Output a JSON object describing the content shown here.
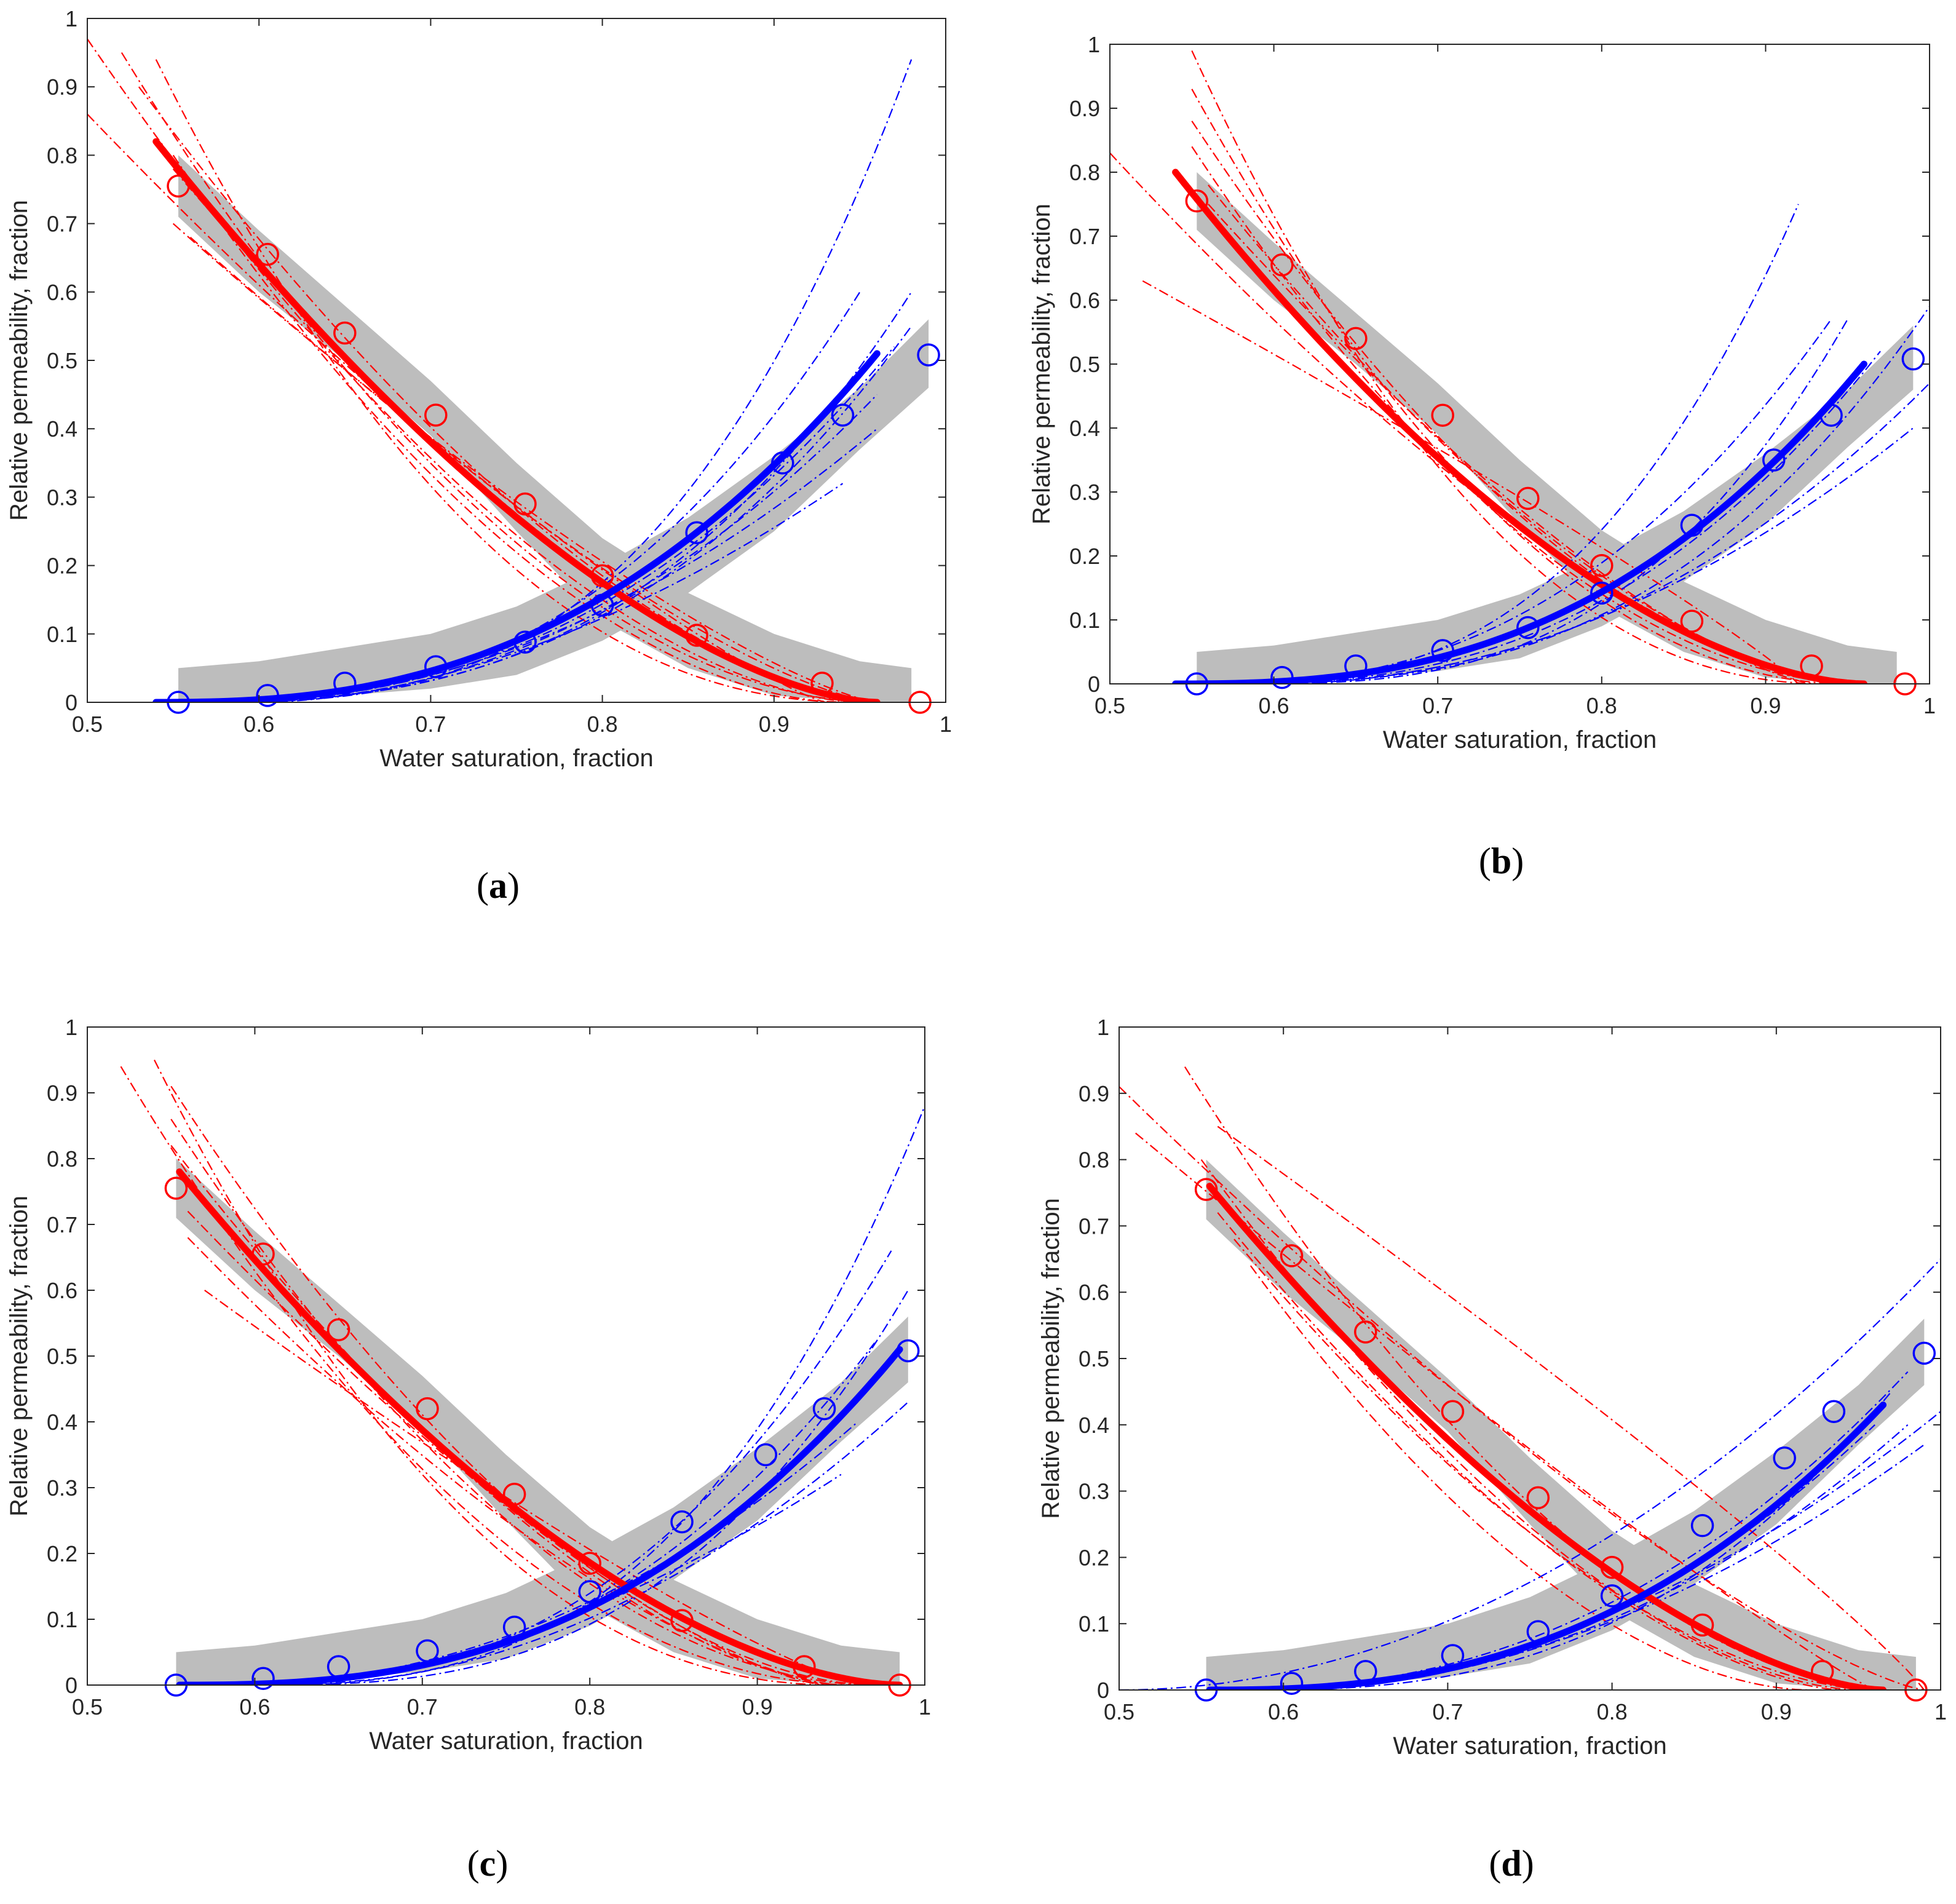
{
  "colors": {
    "krw": "#0000ff",
    "kro": "#ff0000",
    "band": "#bdbdbd",
    "axis": "#262626"
  },
  "figure_title": "",
  "chart_data": [
    {
      "id": "a",
      "panel_label": "a",
      "type": "line",
      "xlabel": "Water saturation, fraction",
      "ylabel": "Relative permeability, fraction",
      "xlim": [
        0.5,
        1
      ],
      "ylim": [
        0,
        1
      ],
      "xticks": [
        0.5,
        0.6,
        0.7,
        0.8,
        0.9,
        1
      ],
      "xtick_labels": [
        "0.5",
        "0.6",
        "0.7",
        "0.8",
        "0.9",
        "1"
      ],
      "yticks": [
        0,
        0.1,
        0.2,
        0.3,
        0.4,
        0.5,
        0.6,
        0.7,
        0.8,
        0.9,
        1
      ],
      "ytick_labels": [
        "0",
        "0.1",
        "0.2",
        "0.3",
        "0.4",
        "0.5",
        "0.6",
        "0.7",
        "0.8",
        "0.9",
        "1"
      ],
      "kro_fit": {
        "x0": 0.54,
        "x1": 0.96,
        "a": 0.82,
        "n": 1.6
      },
      "krw_fit": {
        "x0": 0.54,
        "x1": 0.96,
        "b": 0.51,
        "m": 2.5
      },
      "kro_ensemble": [
        {
          "x0": 0.5,
          "x1": 0.96,
          "a": 0.86,
          "n": 1.4
        },
        {
          "x0": 0.5,
          "x1": 0.95,
          "a": 0.97,
          "n": 1.7
        },
        {
          "x0": 0.52,
          "x1": 0.96,
          "a": 0.95,
          "n": 1.9
        },
        {
          "x0": 0.54,
          "x1": 0.95,
          "a": 0.94,
          "n": 2.2
        },
        {
          "x0": 0.55,
          "x1": 0.94,
          "a": 0.8,
          "n": 1.8
        },
        {
          "x0": 0.55,
          "x1": 0.96,
          "a": 0.7,
          "n": 1.3
        },
        {
          "x0": 0.56,
          "x1": 0.93,
          "a": 0.68,
          "n": 1.2
        },
        {
          "x0": 0.55,
          "x1": 0.95,
          "a": 0.78,
          "n": 1.5
        },
        {
          "x0": 0.53,
          "x1": 0.96,
          "a": 0.9,
          "n": 1.6
        }
      ],
      "krw_ensemble": [
        {
          "x0": 0.56,
          "x1": 0.98,
          "b": 0.94,
          "m": 3.0
        },
        {
          "x0": 0.56,
          "x1": 0.95,
          "b": 0.6,
          "m": 2.6
        },
        {
          "x0": 0.58,
          "x1": 0.96,
          "b": 0.45,
          "m": 2.2
        },
        {
          "x0": 0.55,
          "x1": 0.98,
          "b": 0.6,
          "m": 2.8
        },
        {
          "x0": 0.6,
          "x1": 0.94,
          "b": 0.32,
          "m": 1.8
        },
        {
          "x0": 0.56,
          "x1": 0.97,
          "b": 0.52,
          "m": 2.4
        },
        {
          "x0": 0.58,
          "x1": 0.96,
          "b": 0.4,
          "m": 2.0
        },
        {
          "x0": 0.55,
          "x1": 0.98,
          "b": 0.55,
          "m": 2.7
        }
      ],
      "kro_band": {
        "x": [
          0.553,
          0.6,
          0.65,
          0.7,
          0.75,
          0.8,
          0.85,
          0.9,
          0.95,
          0.98
        ],
        "lower": [
          0.71,
          0.6,
          0.5,
          0.39,
          0.25,
          0.12,
          0.05,
          0.01,
          0.0,
          0.0
        ],
        "upper": [
          0.8,
          0.69,
          0.58,
          0.47,
          0.35,
          0.24,
          0.16,
          0.1,
          0.06,
          0.05
        ]
      },
      "krw_band": {
        "x": [
          0.553,
          0.6,
          0.65,
          0.7,
          0.75,
          0.8,
          0.85,
          0.9,
          0.95,
          0.99
        ],
        "lower": [
          0.0,
          0.0,
          0.01,
          0.02,
          0.04,
          0.09,
          0.16,
          0.25,
          0.37,
          0.46
        ],
        "upper": [
          0.05,
          0.06,
          0.08,
          0.1,
          0.14,
          0.2,
          0.27,
          0.36,
          0.46,
          0.56
        ]
      },
      "kro_points": {
        "x": [
          0.553,
          0.605,
          0.65,
          0.703,
          0.755,
          0.8,
          0.855,
          0.928,
          0.985
        ],
        "y": [
          0.755,
          0.655,
          0.54,
          0.42,
          0.29,
          0.185,
          0.098,
          0.028,
          0.0
        ]
      },
      "krw_points": {
        "x": [
          0.553,
          0.605,
          0.65,
          0.703,
          0.755,
          0.8,
          0.855,
          0.905,
          0.94,
          0.99
        ],
        "y": [
          0.0,
          0.01,
          0.028,
          0.052,
          0.088,
          0.142,
          0.248,
          0.35,
          0.42,
          0.508
        ]
      }
    },
    {
      "id": "b",
      "panel_label": "b",
      "type": "line",
      "xlabel": "Water saturation, fraction",
      "ylabel": "Relative permeability, fraction",
      "xlim": [
        0.5,
        1
      ],
      "ylim": [
        0,
        1
      ],
      "xticks": [
        0.5,
        0.6,
        0.7,
        0.8,
        0.9,
        1
      ],
      "xtick_labels": [
        "0.5",
        "0.6",
        "0.7",
        "0.8",
        "0.9",
        "1"
      ],
      "yticks": [
        0,
        0.1,
        0.2,
        0.3,
        0.4,
        0.5,
        0.6,
        0.7,
        0.8,
        0.9,
        1
      ],
      "ytick_labels": [
        "0",
        "0.1",
        "0.2",
        "0.3",
        "0.4",
        "0.5",
        "0.6",
        "0.7",
        "0.8",
        "0.9",
        "1"
      ],
      "kro_fit": {
        "x0": 0.54,
        "x1": 0.96,
        "a": 0.8,
        "n": 1.7
      },
      "krw_fit": {
        "x0": 0.54,
        "x1": 0.96,
        "b": 0.5,
        "m": 2.6
      },
      "kro_ensemble": [
        {
          "x0": 0.5,
          "x1": 0.95,
          "a": 0.83,
          "n": 1.5
        },
        {
          "x0": 0.52,
          "x1": 0.92,
          "a": 0.63,
          "n": 0.9
        },
        {
          "x0": 0.55,
          "x1": 0.94,
          "a": 0.99,
          "n": 2.2
        },
        {
          "x0": 0.55,
          "x1": 0.95,
          "a": 0.93,
          "n": 2.0
        },
        {
          "x0": 0.55,
          "x1": 0.96,
          "a": 0.88,
          "n": 1.8
        },
        {
          "x0": 0.56,
          "x1": 0.95,
          "a": 0.78,
          "n": 1.6
        },
        {
          "x0": 0.56,
          "x1": 0.93,
          "a": 0.75,
          "n": 1.4
        },
        {
          "x0": 0.55,
          "x1": 0.96,
          "a": 0.84,
          "n": 1.9
        }
      ],
      "krw_ensemble": [
        {
          "x0": 0.56,
          "x1": 0.92,
          "b": 0.75,
          "m": 2.8
        },
        {
          "x0": 0.56,
          "x1": 0.94,
          "b": 0.57,
          "m": 2.4
        },
        {
          "x0": 0.58,
          "x1": 0.95,
          "b": 0.57,
          "m": 2.9
        },
        {
          "x0": 0.56,
          "x1": 1.0,
          "b": 0.59,
          "m": 2.8
        },
        {
          "x0": 0.6,
          "x1": 0.99,
          "b": 0.4,
          "m": 2.0
        },
        {
          "x0": 0.58,
          "x1": 1.0,
          "b": 0.47,
          "m": 2.3
        },
        {
          "x0": 0.57,
          "x1": 0.97,
          "b": 0.52,
          "m": 2.5
        }
      ],
      "kro_band": {
        "x": [
          0.553,
          0.6,
          0.65,
          0.7,
          0.75,
          0.8,
          0.85,
          0.9,
          0.95,
          0.98
        ],
        "lower": [
          0.71,
          0.6,
          0.5,
          0.39,
          0.25,
          0.12,
          0.05,
          0.01,
          0.0,
          0.0
        ],
        "upper": [
          0.8,
          0.69,
          0.58,
          0.47,
          0.35,
          0.24,
          0.16,
          0.1,
          0.06,
          0.05
        ]
      },
      "krw_band": {
        "x": [
          0.553,
          0.6,
          0.65,
          0.7,
          0.75,
          0.8,
          0.85,
          0.9,
          0.95,
          0.99
        ],
        "lower": [
          0.0,
          0.0,
          0.01,
          0.02,
          0.04,
          0.09,
          0.16,
          0.25,
          0.37,
          0.46
        ],
        "upper": [
          0.05,
          0.06,
          0.08,
          0.1,
          0.14,
          0.2,
          0.27,
          0.36,
          0.46,
          0.56
        ]
      },
      "kro_points": {
        "x": [
          0.553,
          0.605,
          0.65,
          0.703,
          0.755,
          0.8,
          0.855,
          0.928,
          0.985
        ],
        "y": [
          0.755,
          0.655,
          0.54,
          0.42,
          0.29,
          0.185,
          0.098,
          0.028,
          0.0
        ]
      },
      "krw_points": {
        "x": [
          0.553,
          0.605,
          0.65,
          0.703,
          0.755,
          0.8,
          0.855,
          0.905,
          0.94,
          0.99
        ],
        "y": [
          0.0,
          0.01,
          0.028,
          0.052,
          0.088,
          0.142,
          0.248,
          0.35,
          0.42,
          0.508
        ]
      }
    },
    {
      "id": "c",
      "panel_label": "c",
      "type": "line",
      "xlabel": "Water saturation, fraction",
      "ylabel": "Relative permeability, fraction",
      "xlim": [
        0.5,
        1
      ],
      "ylim": [
        0,
        1
      ],
      "xticks": [
        0.5,
        0.6,
        0.7,
        0.8,
        0.9,
        1
      ],
      "xtick_labels": [
        "0.5",
        "0.6",
        "0.7",
        "0.8",
        "0.9",
        "1"
      ],
      "yticks": [
        0,
        0.1,
        0.2,
        0.3,
        0.4,
        0.5,
        0.6,
        0.7,
        0.8,
        0.9,
        1
      ],
      "ytick_labels": [
        "0",
        "0.1",
        "0.2",
        "0.3",
        "0.4",
        "0.5",
        "0.6",
        "0.7",
        "0.8",
        "0.9",
        "1"
      ],
      "kro_fit": {
        "x0": 0.555,
        "x1": 0.985,
        "a": 0.78,
        "n": 1.7
      },
      "krw_fit": {
        "x0": 0.555,
        "x1": 0.985,
        "b": 0.51,
        "m": 2.6
      },
      "kro_ensemble": [
        {
          "x0": 0.52,
          "x1": 0.96,
          "a": 0.94,
          "n": 2.0
        },
        {
          "x0": 0.54,
          "x1": 0.95,
          "a": 0.95,
          "n": 2.2
        },
        {
          "x0": 0.55,
          "x1": 0.97,
          "a": 0.91,
          "n": 1.8
        },
        {
          "x0": 0.55,
          "x1": 0.95,
          "a": 0.82,
          "n": 1.6
        },
        {
          "x0": 0.56,
          "x1": 0.94,
          "a": 0.72,
          "n": 1.4
        },
        {
          "x0": 0.57,
          "x1": 0.96,
          "a": 0.6,
          "n": 1.2
        },
        {
          "x0": 0.56,
          "x1": 0.95,
          "a": 0.68,
          "n": 1.5
        },
        {
          "x0": 0.55,
          "x1": 0.97,
          "a": 0.86,
          "n": 1.9
        }
      ],
      "krw_ensemble": [
        {
          "x0": 0.58,
          "x1": 1.0,
          "b": 0.88,
          "m": 3.0
        },
        {
          "x0": 0.58,
          "x1": 0.98,
          "b": 0.66,
          "m": 2.6
        },
        {
          "x0": 0.6,
          "x1": 0.99,
          "b": 0.6,
          "m": 2.8
        },
        {
          "x0": 0.58,
          "x1": 0.96,
          "b": 0.4,
          "m": 2.1
        },
        {
          "x0": 0.62,
          "x1": 0.99,
          "b": 0.43,
          "m": 2.0
        },
        {
          "x0": 0.6,
          "x1": 0.95,
          "b": 0.32,
          "m": 1.8
        },
        {
          "x0": 0.58,
          "x1": 0.97,
          "b": 0.52,
          "m": 2.5
        }
      ],
      "kro_band": {
        "x": [
          0.553,
          0.6,
          0.65,
          0.7,
          0.75,
          0.8,
          0.85,
          0.9,
          0.95,
          0.985
        ],
        "lower": [
          0.71,
          0.6,
          0.5,
          0.39,
          0.25,
          0.12,
          0.05,
          0.01,
          0.0,
          0.0
        ],
        "upper": [
          0.8,
          0.69,
          0.58,
          0.47,
          0.35,
          0.24,
          0.16,
          0.1,
          0.06,
          0.05
        ]
      },
      "krw_band": {
        "x": [
          0.553,
          0.6,
          0.65,
          0.7,
          0.75,
          0.8,
          0.85,
          0.9,
          0.95,
          0.99
        ],
        "lower": [
          0.0,
          0.0,
          0.01,
          0.02,
          0.04,
          0.09,
          0.16,
          0.25,
          0.37,
          0.46
        ],
        "upper": [
          0.05,
          0.06,
          0.08,
          0.1,
          0.14,
          0.2,
          0.27,
          0.36,
          0.46,
          0.56
        ]
      },
      "kro_points": {
        "x": [
          0.553,
          0.605,
          0.65,
          0.703,
          0.755,
          0.8,
          0.855,
          0.928,
          0.985
        ],
        "y": [
          0.755,
          0.655,
          0.54,
          0.42,
          0.29,
          0.185,
          0.098,
          0.028,
          0.0
        ]
      },
      "krw_points": {
        "x": [
          0.553,
          0.605,
          0.65,
          0.703,
          0.755,
          0.8,
          0.855,
          0.905,
          0.94,
          0.99
        ],
        "y": [
          0.0,
          0.01,
          0.028,
          0.052,
          0.088,
          0.142,
          0.248,
          0.35,
          0.42,
          0.508
        ]
      }
    },
    {
      "id": "d",
      "panel_label": "d",
      "type": "line",
      "xlabel": "Water saturation, fraction",
      "ylabel": "Relative permeability, fraction",
      "xlim": [
        0.5,
        1
      ],
      "ylim": [
        0,
        1
      ],
      "xticks": [
        0.5,
        0.6,
        0.7,
        0.8,
        0.9,
        1
      ],
      "xtick_labels": [
        "0.5",
        "0.6",
        "0.7",
        "0.8",
        "0.9",
        "1"
      ],
      "yticks": [
        0,
        0.1,
        0.2,
        0.3,
        0.4,
        0.5,
        0.6,
        0.7,
        0.8,
        0.9,
        1
      ],
      "ytick_labels": [
        "0",
        "0.1",
        "0.2",
        "0.3",
        "0.4",
        "0.5",
        "0.6",
        "0.7",
        "0.8",
        "0.9",
        "1"
      ],
      "kro_fit": {
        "x0": 0.555,
        "x1": 0.965,
        "a": 0.76,
        "n": 1.6
      },
      "krw_fit": {
        "x0": 0.555,
        "x1": 0.965,
        "b": 0.43,
        "m": 2.5
      },
      "kro_ensemble": [
        {
          "x0": 0.5,
          "x1": 0.99,
          "a": 0.91,
          "n": 1.3
        },
        {
          "x0": 0.51,
          "x1": 0.96,
          "a": 0.84,
          "n": 1.1
        },
        {
          "x0": 0.54,
          "x1": 0.97,
          "a": 0.94,
          "n": 1.8
        },
        {
          "x0": 0.55,
          "x1": 0.95,
          "a": 0.8,
          "n": 1.7
        },
        {
          "x0": 0.56,
          "x1": 0.94,
          "a": 0.72,
          "n": 1.6
        },
        {
          "x0": 0.57,
          "x1": 0.96,
          "a": 0.68,
          "n": 1.7
        },
        {
          "x0": 0.58,
          "x1": 0.92,
          "a": 0.64,
          "n": 1.8
        },
        {
          "x0": 0.56,
          "x1": 0.99,
          "a": 0.85,
          "n": 0.9
        }
      ],
      "krw_ensemble": [
        {
          "x0": 0.5,
          "x1": 1.0,
          "b": 0.65,
          "m": 2.0
        },
        {
          "x0": 0.56,
          "x1": 0.98,
          "b": 0.48,
          "m": 2.3
        },
        {
          "x0": 0.58,
          "x1": 1.0,
          "b": 0.42,
          "m": 2.0
        },
        {
          "x0": 0.58,
          "x1": 0.98,
          "b": 0.4,
          "m": 2.2
        },
        {
          "x0": 0.6,
          "x1": 0.99,
          "b": 0.37,
          "m": 1.9
        },
        {
          "x0": 0.58,
          "x1": 0.97,
          "b": 0.45,
          "m": 2.6
        },
        {
          "x0": 0.57,
          "x1": 0.96,
          "b": 0.4,
          "m": 2.3
        }
      ],
      "kro_band": {
        "x": [
          0.553,
          0.6,
          0.65,
          0.7,
          0.75,
          0.8,
          0.85,
          0.9,
          0.95,
          0.985
        ],
        "lower": [
          0.71,
          0.6,
          0.5,
          0.39,
          0.25,
          0.12,
          0.05,
          0.01,
          0.0,
          0.0
        ],
        "upper": [
          0.8,
          0.69,
          0.58,
          0.47,
          0.35,
          0.24,
          0.16,
          0.1,
          0.06,
          0.05
        ]
      },
      "krw_band": {
        "x": [
          0.553,
          0.6,
          0.65,
          0.7,
          0.75,
          0.8,
          0.85,
          0.9,
          0.95,
          0.99
        ],
        "lower": [
          0.0,
          0.0,
          0.01,
          0.02,
          0.04,
          0.09,
          0.16,
          0.25,
          0.37,
          0.46
        ],
        "upper": [
          0.05,
          0.06,
          0.08,
          0.1,
          0.14,
          0.2,
          0.27,
          0.36,
          0.46,
          0.56
        ]
      },
      "kro_points": {
        "x": [
          0.553,
          0.605,
          0.65,
          0.703,
          0.755,
          0.8,
          0.855,
          0.928,
          0.985
        ],
        "y": [
          0.755,
          0.655,
          0.54,
          0.42,
          0.29,
          0.185,
          0.098,
          0.028,
          0.0
        ]
      },
      "krw_points": {
        "x": [
          0.553,
          0.605,
          0.65,
          0.703,
          0.755,
          0.8,
          0.855,
          0.905,
          0.935,
          0.99
        ],
        "y": [
          0.0,
          0.01,
          0.028,
          0.052,
          0.088,
          0.142,
          0.248,
          0.35,
          0.42,
          0.508
        ]
      }
    }
  ]
}
